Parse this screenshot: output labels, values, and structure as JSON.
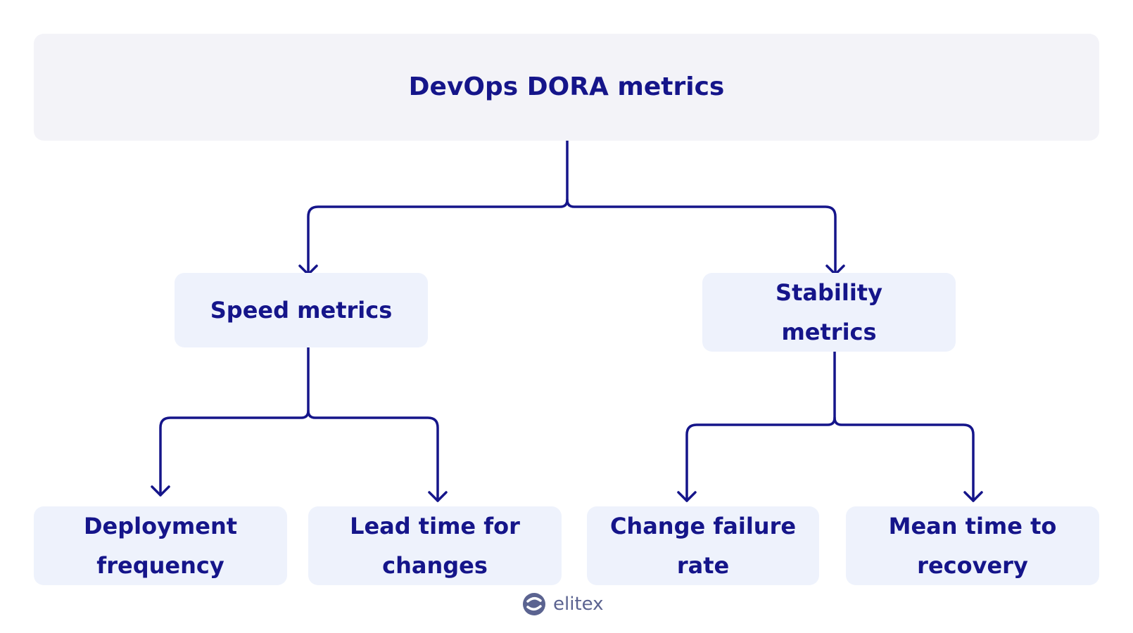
{
  "title": "DevOps DORA metrics",
  "nodes": [
    {
      "label": "Speed metrics"
    },
    {
      "label": "Stability metrics"
    },
    {
      "label": "Deployment frequency"
    },
    {
      "label": "Lead time for changes"
    },
    {
      "label": "Change failure rate"
    },
    {
      "label": "Mean time to recovery"
    }
  ],
  "logo": "elitex"
}
